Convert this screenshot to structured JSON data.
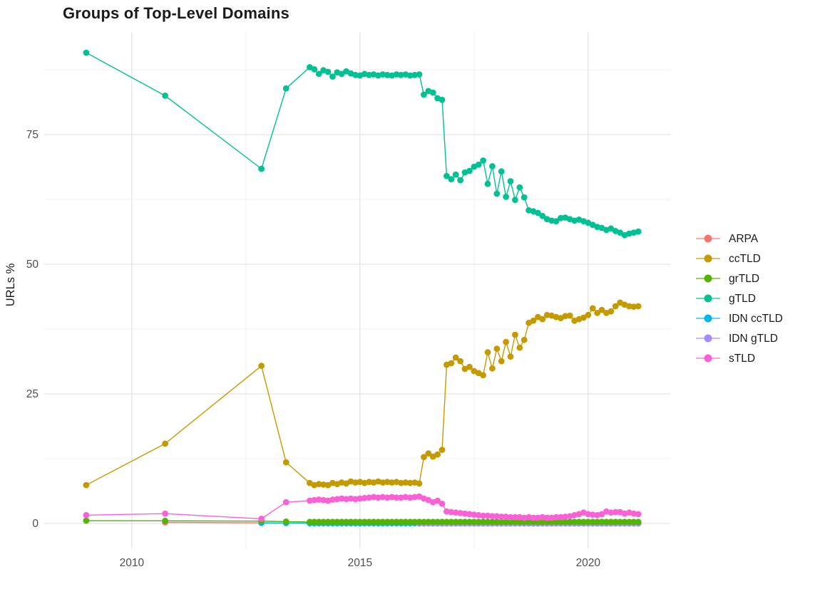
{
  "chart_data": {
    "type": "line",
    "title": "Groups of Top-Level Domains",
    "xlabel": "",
    "ylabel": "URLs %",
    "x_ticks": [
      2010,
      2015,
      2020
    ],
    "x_minor_ticks": [
      2012.5,
      2017.5
    ],
    "y_ticks": [
      0,
      25,
      50,
      75
    ],
    "y_minor_ticks": [
      12.5,
      37.5,
      62.5,
      87.5
    ],
    "xlim": [
      2008.08,
      2021.8
    ],
    "ylim": [
      -4.81,
      94.78
    ],
    "grid": true,
    "legend_position": "right",
    "panel_background": "#ffffff",
    "grid_major_color": "#e4e4e4",
    "grid_minor_color": "#f2f2f2",
    "axis_text_color": "#4d4d4d",
    "z_order": [
      "ARPA",
      "IDN ccTLD",
      "IDN gTLD",
      "grTLD",
      "gTLD",
      "ccTLD",
      "sTLD"
    ],
    "series": [
      {
        "name": "ARPA",
        "color": "#F8766D",
        "points": [
          [
            2010.73,
            0.2
          ],
          [
            2012.84,
            0.12
          ],
          [
            2013.38,
            0.1
          ]
        ],
        "runs": [
          {
            "from": 2013.9,
            "to": 2021.1,
            "step": 0.1,
            "value": 0.08
          }
        ]
      },
      {
        "name": "ccTLD",
        "color": "#C49A00",
        "points": [
          [
            2009.0,
            7.4
          ],
          [
            2010.73,
            15.4
          ],
          [
            2012.84,
            30.4
          ],
          [
            2013.38,
            11.8
          ],
          [
            2013.9,
            7.8
          ],
          [
            2014.0,
            7.4
          ],
          [
            2014.1,
            7.6
          ],
          [
            2014.2,
            7.5
          ],
          [
            2014.3,
            7.4
          ],
          [
            2014.4,
            7.8
          ],
          [
            2014.5,
            7.6
          ],
          [
            2014.6,
            7.9
          ],
          [
            2014.7,
            7.7
          ],
          [
            2014.8,
            8.1
          ],
          [
            2014.9,
            7.9
          ],
          [
            2015.0,
            8.0
          ],
          [
            2015.1,
            7.8
          ],
          [
            2015.2,
            8.0
          ],
          [
            2015.3,
            7.9
          ],
          [
            2015.4,
            8.1
          ],
          [
            2015.5,
            7.9
          ],
          [
            2015.6,
            8.0
          ],
          [
            2015.7,
            7.9
          ],
          [
            2015.8,
            8.0
          ],
          [
            2015.9,
            7.8
          ],
          [
            2016.0,
            7.9
          ],
          [
            2016.1,
            7.8
          ],
          [
            2016.2,
            7.9
          ],
          [
            2016.3,
            7.7
          ],
          [
            2016.4,
            12.8
          ],
          [
            2016.5,
            13.5
          ],
          [
            2016.6,
            12.9
          ],
          [
            2016.7,
            13.3
          ],
          [
            2016.8,
            14.2
          ],
          [
            2016.9,
            30.6
          ],
          [
            2017.0,
            30.9
          ],
          [
            2017.1,
            32.0
          ],
          [
            2017.2,
            31.3
          ],
          [
            2017.3,
            29.8
          ],
          [
            2017.4,
            30.2
          ],
          [
            2017.5,
            29.4
          ],
          [
            2017.6,
            29.0
          ],
          [
            2017.7,
            28.6
          ],
          [
            2017.8,
            33.0
          ],
          [
            2017.9,
            29.9
          ],
          [
            2018.0,
            33.7
          ],
          [
            2018.1,
            31.3
          ],
          [
            2018.2,
            35.0
          ],
          [
            2018.3,
            32.2
          ],
          [
            2018.4,
            36.4
          ],
          [
            2018.5,
            33.9
          ],
          [
            2018.6,
            35.4
          ],
          [
            2018.7,
            38.7
          ],
          [
            2018.8,
            39.1
          ],
          [
            2018.9,
            39.8
          ],
          [
            2019.0,
            39.4
          ],
          [
            2019.1,
            40.2
          ],
          [
            2019.2,
            40.1
          ],
          [
            2019.3,
            39.8
          ],
          [
            2019.4,
            39.6
          ],
          [
            2019.5,
            40.0
          ],
          [
            2019.6,
            40.1
          ],
          [
            2019.7,
            39.1
          ],
          [
            2019.8,
            39.4
          ],
          [
            2019.9,
            39.7
          ],
          [
            2020.0,
            40.2
          ],
          [
            2020.1,
            41.5
          ],
          [
            2020.2,
            40.6
          ],
          [
            2020.3,
            41.2
          ],
          [
            2020.4,
            40.6
          ],
          [
            2020.5,
            40.9
          ],
          [
            2020.6,
            41.9
          ],
          [
            2020.7,
            42.6
          ],
          [
            2020.8,
            42.2
          ],
          [
            2020.9,
            41.9
          ],
          [
            2021.0,
            41.8
          ],
          [
            2021.1,
            41.9
          ]
        ],
        "runs": []
      },
      {
        "name": "grTLD",
        "color": "#53B400",
        "points": [
          [
            2009.0,
            0.55
          ],
          [
            2010.73,
            0.5
          ],
          [
            2012.84,
            0.45
          ],
          [
            2013.38,
            0.35
          ]
        ],
        "runs": [
          {
            "from": 2013.9,
            "to": 2021.1,
            "step": 0.1,
            "value": 0.3
          }
        ]
      },
      {
        "name": "gTLD",
        "color": "#00C094",
        "points": [
          [
            2009.0,
            90.8
          ],
          [
            2010.73,
            82.5
          ],
          [
            2012.84,
            68.4
          ],
          [
            2013.38,
            83.9
          ],
          [
            2013.9,
            88.0
          ],
          [
            2014.0,
            87.6
          ],
          [
            2014.1,
            86.7
          ],
          [
            2014.2,
            87.4
          ],
          [
            2014.3,
            87.1
          ],
          [
            2014.4,
            86.2
          ],
          [
            2014.5,
            87.0
          ],
          [
            2014.6,
            86.7
          ],
          [
            2014.7,
            87.2
          ],
          [
            2014.8,
            86.8
          ],
          [
            2014.9,
            86.5
          ],
          [
            2015.0,
            86.4
          ],
          [
            2015.1,
            86.7
          ],
          [
            2015.2,
            86.5
          ],
          [
            2015.3,
            86.6
          ],
          [
            2015.4,
            86.4
          ],
          [
            2015.5,
            86.6
          ],
          [
            2015.6,
            86.5
          ],
          [
            2015.7,
            86.4
          ],
          [
            2015.8,
            86.6
          ],
          [
            2015.9,
            86.5
          ],
          [
            2016.0,
            86.6
          ],
          [
            2016.1,
            86.4
          ],
          [
            2016.2,
            86.5
          ],
          [
            2016.3,
            86.6
          ],
          [
            2016.4,
            82.7
          ],
          [
            2016.5,
            83.4
          ],
          [
            2016.6,
            83.1
          ],
          [
            2016.7,
            82.0
          ],
          [
            2016.8,
            81.7
          ],
          [
            2016.9,
            67.0
          ],
          [
            2017.0,
            66.4
          ],
          [
            2017.1,
            67.3
          ],
          [
            2017.2,
            66.2
          ],
          [
            2017.3,
            67.7
          ],
          [
            2017.4,
            68.0
          ],
          [
            2017.5,
            68.8
          ],
          [
            2017.6,
            69.2
          ],
          [
            2017.7,
            70.0
          ],
          [
            2017.8,
            65.5
          ],
          [
            2017.9,
            68.9
          ],
          [
            2018.0,
            63.6
          ],
          [
            2018.1,
            67.9
          ],
          [
            2018.2,
            63.0
          ],
          [
            2018.3,
            66.0
          ],
          [
            2018.4,
            62.4
          ],
          [
            2018.5,
            64.8
          ],
          [
            2018.6,
            62.9
          ],
          [
            2018.7,
            60.4
          ],
          [
            2018.8,
            60.2
          ],
          [
            2018.9,
            59.9
          ],
          [
            2019.0,
            59.3
          ],
          [
            2019.1,
            58.7
          ],
          [
            2019.2,
            58.4
          ],
          [
            2019.3,
            58.3
          ],
          [
            2019.4,
            58.9
          ],
          [
            2019.5,
            59.0
          ],
          [
            2019.6,
            58.7
          ],
          [
            2019.7,
            58.4
          ],
          [
            2019.8,
            58.6
          ],
          [
            2019.9,
            58.3
          ],
          [
            2020.0,
            58.0
          ],
          [
            2020.1,
            57.6
          ],
          [
            2020.2,
            57.2
          ],
          [
            2020.3,
            57.0
          ],
          [
            2020.4,
            56.6
          ],
          [
            2020.5,
            56.9
          ],
          [
            2020.6,
            56.4
          ],
          [
            2020.7,
            56.1
          ],
          [
            2020.8,
            55.6
          ],
          [
            2020.9,
            55.9
          ],
          [
            2021.0,
            56.1
          ],
          [
            2021.1,
            56.3
          ]
        ],
        "runs": []
      },
      {
        "name": "IDN ccTLD",
        "color": "#00B6EB",
        "points": [
          [
            2012.84,
            0.1
          ],
          [
            2013.38,
            0.08
          ]
        ],
        "runs": [
          {
            "from": 2013.9,
            "to": 2021.1,
            "step": 0.1,
            "value": 0.05
          }
        ]
      },
      {
        "name": "IDN gTLD",
        "color": "#A58AFF",
        "points": [],
        "runs": [
          {
            "from": 2016.3,
            "to": 2021.1,
            "step": 0.1,
            "value": 0.0
          }
        ]
      },
      {
        "name": "sTLD",
        "color": "#FB61D7",
        "points": [
          [
            2009.0,
            1.6
          ],
          [
            2010.73,
            1.9
          ],
          [
            2012.84,
            0.9
          ],
          [
            2013.38,
            4.1
          ],
          [
            2013.9,
            4.4
          ],
          [
            2014.0,
            4.5
          ],
          [
            2014.1,
            4.6
          ],
          [
            2014.2,
            4.5
          ],
          [
            2014.3,
            4.4
          ],
          [
            2014.4,
            4.6
          ],
          [
            2014.5,
            4.7
          ],
          [
            2014.6,
            4.8
          ],
          [
            2014.7,
            4.7
          ],
          [
            2014.8,
            4.8
          ],
          [
            2014.9,
            4.7
          ],
          [
            2015.0,
            4.8
          ],
          [
            2015.1,
            4.9
          ],
          [
            2015.2,
            5.0
          ],
          [
            2015.3,
            5.1
          ],
          [
            2015.4,
            5.0
          ],
          [
            2015.5,
            5.1
          ],
          [
            2015.6,
            5.0
          ],
          [
            2015.7,
            5.1
          ],
          [
            2015.8,
            5.0
          ],
          [
            2015.9,
            5.0
          ],
          [
            2016.0,
            5.1
          ],
          [
            2016.1,
            5.0
          ],
          [
            2016.2,
            5.1
          ],
          [
            2016.3,
            5.2
          ],
          [
            2016.4,
            4.8
          ],
          [
            2016.5,
            4.5
          ],
          [
            2016.6,
            4.1
          ],
          [
            2016.7,
            4.4
          ],
          [
            2016.8,
            3.8
          ],
          [
            2016.9,
            2.3
          ],
          [
            2017.0,
            2.2
          ],
          [
            2017.1,
            2.1
          ],
          [
            2017.2,
            2.0
          ],
          [
            2017.3,
            1.9
          ],
          [
            2017.4,
            1.8
          ],
          [
            2017.5,
            1.7
          ],
          [
            2017.6,
            1.6
          ],
          [
            2017.7,
            1.5
          ],
          [
            2017.8,
            1.5
          ],
          [
            2017.9,
            1.4
          ],
          [
            2018.0,
            1.4
          ],
          [
            2018.1,
            1.3
          ],
          [
            2018.2,
            1.3
          ],
          [
            2018.3,
            1.2
          ],
          [
            2018.4,
            1.2
          ],
          [
            2018.5,
            1.2
          ],
          [
            2018.6,
            1.1
          ],
          [
            2018.7,
            1.2
          ],
          [
            2018.8,
            1.1
          ],
          [
            2018.9,
            1.1
          ],
          [
            2019.0,
            1.2
          ],
          [
            2019.1,
            1.1
          ],
          [
            2019.2,
            1.1
          ],
          [
            2019.3,
            1.2
          ],
          [
            2019.4,
            1.2
          ],
          [
            2019.5,
            1.3
          ],
          [
            2019.6,
            1.4
          ],
          [
            2019.7,
            1.6
          ],
          [
            2019.8,
            1.8
          ],
          [
            2019.9,
            2.1
          ],
          [
            2020.0,
            1.8
          ],
          [
            2020.1,
            1.7
          ],
          [
            2020.2,
            1.6
          ],
          [
            2020.3,
            1.8
          ],
          [
            2020.4,
            2.3
          ],
          [
            2020.5,
            2.1
          ],
          [
            2020.6,
            2.2
          ],
          [
            2020.7,
            2.2
          ],
          [
            2020.8,
            1.9
          ],
          [
            2020.9,
            2.1
          ],
          [
            2021.0,
            1.9
          ],
          [
            2021.1,
            1.8
          ]
        ],
        "runs": []
      }
    ]
  }
}
